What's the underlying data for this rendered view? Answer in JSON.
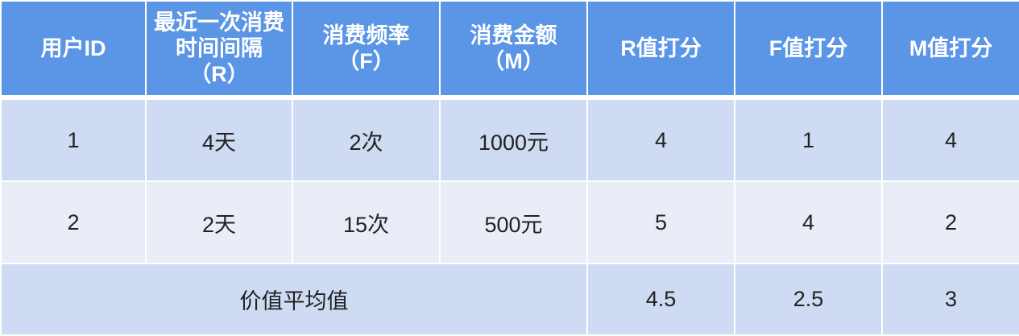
{
  "table": {
    "headers": [
      "用户ID",
      "最近一次消费时间间隔（R）",
      "消费频率（F）",
      "消费金额（M）",
      "R值打分",
      "F值打分",
      "M值打分"
    ],
    "rows": [
      [
        "1",
        "4天",
        "2次",
        "1000元",
        "4",
        "1",
        "4"
      ],
      [
        "2",
        "2天",
        "15次",
        "500元",
        "5",
        "4",
        "2"
      ]
    ],
    "summary": {
      "label": "价值平均值",
      "values": [
        "4.5",
        "2.5",
        "3"
      ]
    }
  },
  "colors": {
    "header": "#5b95e5",
    "row_odd": "#cfdbf2",
    "row_even": "#e9edf8"
  }
}
